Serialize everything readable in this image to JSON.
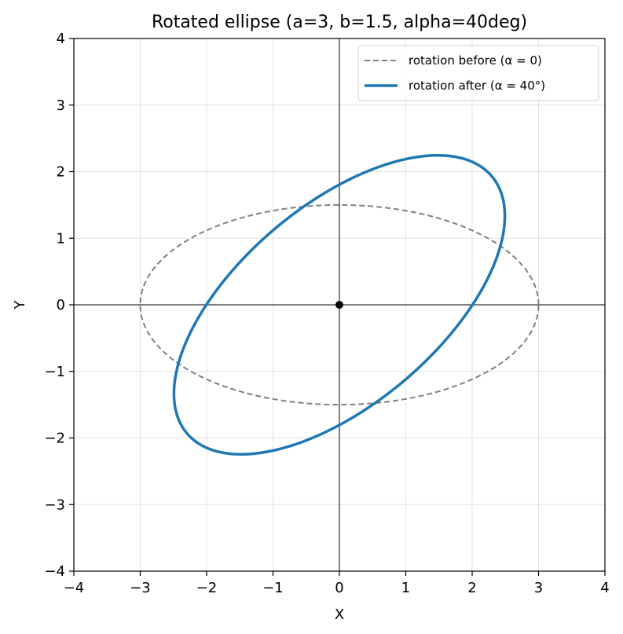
{
  "chart_data": {
    "type": "line",
    "title": "Rotated ellipse (a=3, b=1.5, alpha=40deg)",
    "xlabel": "X",
    "ylabel": "Y",
    "xlim": [
      -4,
      4
    ],
    "ylim": [
      -4,
      4
    ],
    "xticks": [
      -4,
      -3,
      -2,
      -1,
      0,
      1,
      2,
      3,
      4
    ],
    "yticks": [
      -4,
      -3,
      -2,
      -1,
      0,
      1,
      2,
      3,
      4
    ],
    "xtick_labels": [
      "−4",
      "−3",
      "−2",
      "−1",
      "0",
      "1",
      "2",
      "3",
      "4"
    ],
    "ytick_labels": [
      "−4",
      "−3",
      "−2",
      "−1",
      "0",
      "1",
      "2",
      "3",
      "4"
    ],
    "grid": true,
    "legend_position": "top-right",
    "ellipse": {
      "a": 3,
      "b": 1.5,
      "alpha_deg": 40
    },
    "series": [
      {
        "name": "rotation before (α = 0)",
        "style": "dashed",
        "color": "#808080",
        "rotation_deg": 0
      },
      {
        "name": "rotation after (α = 40°)",
        "style": "solid",
        "color": "#1f77b4",
        "rotation_deg": 40
      }
    ],
    "center_point": {
      "x": 0,
      "y": 0,
      "color": "#000000"
    }
  }
}
